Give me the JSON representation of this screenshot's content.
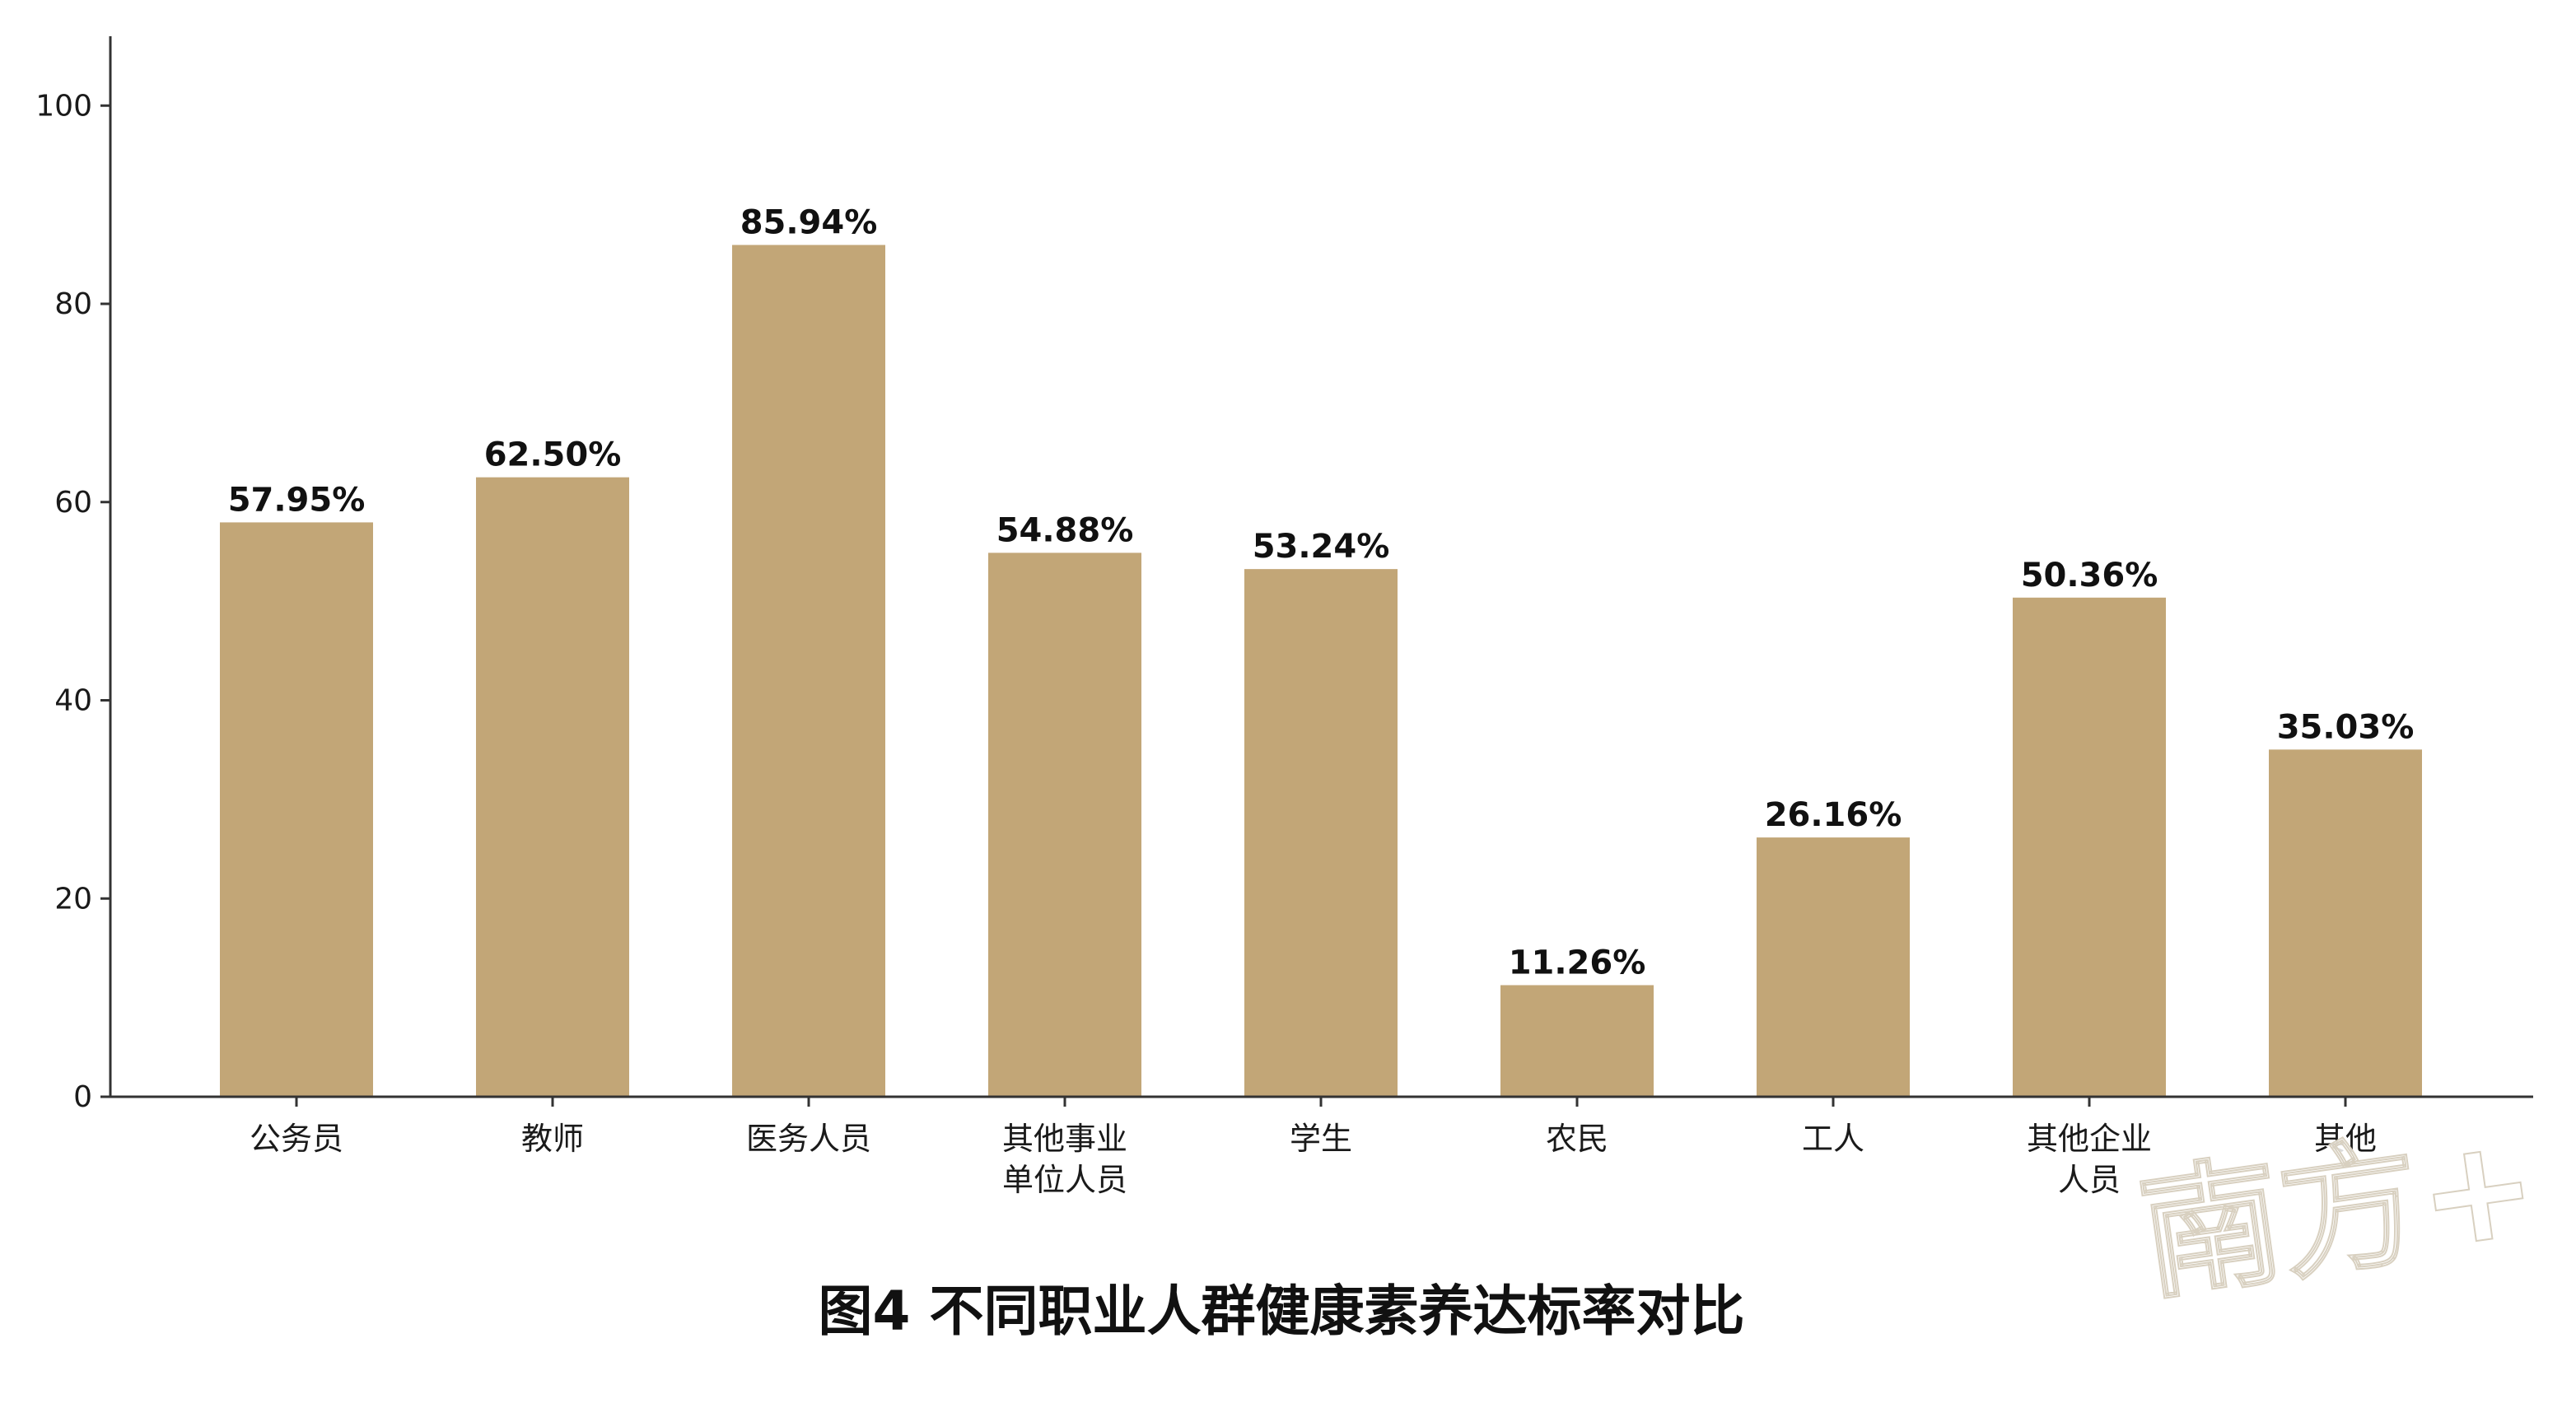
{
  "chart_data": {
    "type": "bar",
    "title": "图4  不同职业人群健康素养达标率对比",
    "categories": [
      [
        "公务员"
      ],
      [
        "教师"
      ],
      [
        "医务人员"
      ],
      [
        "其他事业",
        "单位人员"
      ],
      [
        "学生"
      ],
      [
        "农民"
      ],
      [
        "工人"
      ],
      [
        "其他企业",
        "人员"
      ],
      [
        "其他"
      ]
    ],
    "values": [
      57.95,
      62.5,
      85.94,
      54.88,
      53.24,
      11.26,
      26.16,
      50.36,
      35.03
    ],
    "value_labels": [
      "57.95%",
      "62.50%",
      "85.94%",
      "54.88%",
      "53.24%",
      "11.26%",
      "26.16%",
      "50.36%",
      "35.03%"
    ],
    "ylim": [
      0,
      107
    ],
    "yticks": [
      0,
      20,
      40,
      60,
      80,
      100
    ],
    "xlabel": "",
    "ylabel": "",
    "grid": false,
    "legend": "none",
    "bar_color": "#c2a677",
    "axis_color": "#333333"
  },
  "watermark": "南方+"
}
